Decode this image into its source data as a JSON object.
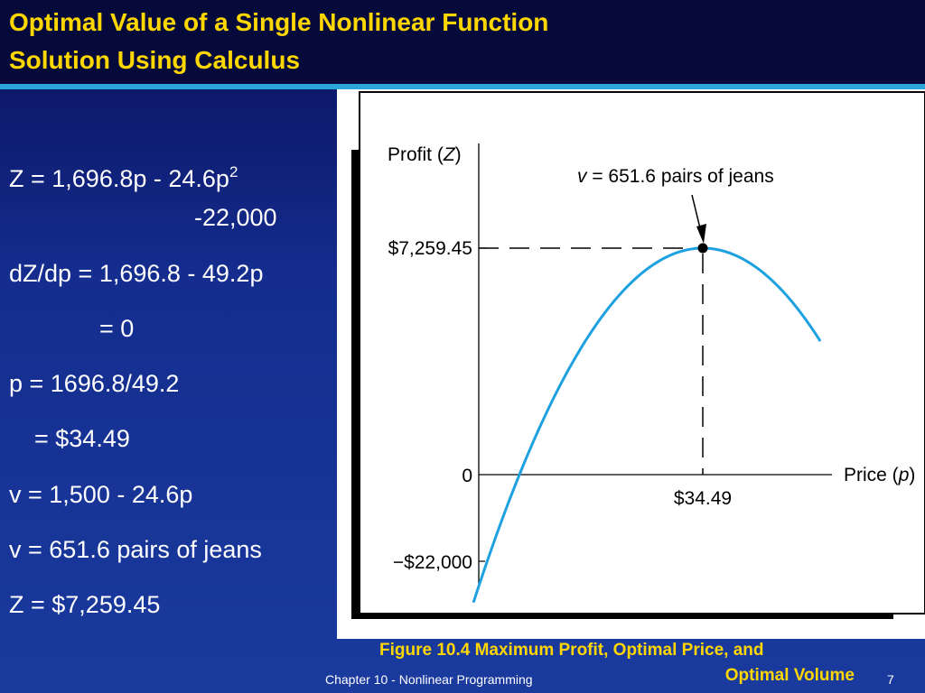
{
  "slide": {
    "title_line_1": "Optimal Value of a Single Nonlinear Function",
    "title_line_2": "Solution Using Calculus",
    "footer": "Chapter 10 - Nonlinear Programming",
    "page_number": "7"
  },
  "equations": {
    "z_main": "Z = 1,696.8p - 24.6p",
    "z_exponent": "2",
    "z_cont": "-22,000",
    "dz": "dZ/dp = 1,696.8 - 49.2p",
    "dz_zero": "= 0",
    "p_calc": "p = 1696.8/49.2",
    "p_value": "= $34.49",
    "v_formula": "v = 1,500 - 24.6p",
    "v_value": "v = 651.6 pairs of jeans",
    "z_value": "Z = $7,259.45"
  },
  "caption": {
    "line_1": "Figure 10.4   Maximum Profit, Optimal Price, and",
    "line_2": "Optimal Volume"
  },
  "chart_data": {
    "type": "line",
    "ylabel_prefix": "Profit (",
    "ylabel_var": "Z",
    "ylabel_suffix": ")",
    "xlabel_prefix": "Price (",
    "xlabel_var": "p",
    "xlabel_suffix": ")",
    "annotation_var": "v",
    "annotation_rest": " = 651.6 pairs of jeans",
    "y_tick_labels": [
      "$7,259.45",
      "0",
      "−$22,000"
    ],
    "x_tick_labels": [
      "$34.49"
    ],
    "function": {
      "a": 1696.8,
      "b": -24.6,
      "c": -22000
    },
    "x_range": [
      13.0,
      45.5
    ],
    "y_ticks": [
      7259.45,
      0,
      -22000
    ],
    "optimum": {
      "x": 34.49,
      "y": 7259.45
    },
    "series_color": "#1ea1e0",
    "grid": false
  }
}
